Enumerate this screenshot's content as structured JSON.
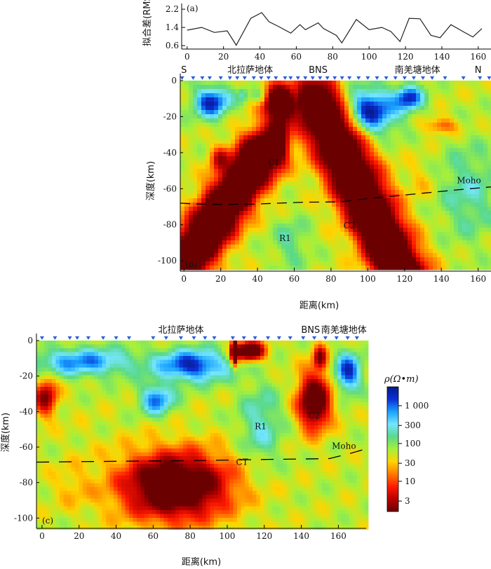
{
  "colors": {
    "scale": [
      "#6b0000",
      "#b80000",
      "#ff1a00",
      "#ff7a00",
      "#ffd400",
      "#a6f03a",
      "#5ad98a",
      "#73e6ff",
      "#1aa3ff",
      "#0a2fd6",
      "#061a8a"
    ],
    "station": "#2a5fd8",
    "moho": "#000000"
  },
  "chart_data": [
    {
      "id": "a",
      "panel_label": "(a)",
      "type": "line",
      "ylabel": "拟合差(RMS)",
      "yticks": [
        "2.2",
        "1.4",
        "0.6"
      ],
      "ylim": [
        0.45,
        2.45
      ],
      "xlim": [
        -3,
        167
      ],
      "xticks": [
        "0",
        "20",
        "40",
        "60",
        "80",
        "100",
        "120",
        "140",
        "160"
      ],
      "series": [
        {
          "x": [
            0,
            8,
            15,
            22,
            27,
            35,
            41,
            45,
            50,
            57,
            62,
            65,
            72,
            75,
            82,
            85,
            93,
            100,
            107,
            112,
            117,
            122,
            128,
            134,
            139,
            145,
            152,
            157,
            162
          ],
          "y": [
            1.28,
            1.4,
            1.18,
            1.25,
            0.62,
            1.8,
            2.05,
            1.65,
            1.45,
            1.15,
            1.52,
            1.3,
            1.6,
            1.35,
            1.05,
            0.72,
            1.75,
            1.3,
            1.4,
            1.22,
            0.78,
            1.8,
            1.78,
            1.05,
            0.95,
            1.52,
            1.2,
            0.98,
            1.35
          ]
        }
      ]
    },
    {
      "id": "b",
      "panel_label": "(b)",
      "type": "heatmap",
      "xlabel": "距离(km)",
      "ylabel": "深度(km)",
      "xlim": [
        -2,
        167
      ],
      "ylim": [
        0,
        -105
      ],
      "xticks": [
        "0",
        "20",
        "40",
        "60",
        "80",
        "100",
        "120",
        "140",
        "160"
      ],
      "yticks": [
        "0",
        "-20",
        "-40",
        "-60",
        "-80",
        "-100"
      ],
      "top_labels": [
        {
          "text": "S",
          "x": 0
        },
        {
          "text": "北拉萨地体",
          "x": 36
        },
        {
          "text": "BNS",
          "x": 73
        },
        {
          "text": "南羌塘地体",
          "x": 127
        },
        {
          "text": "N",
          "x": 160
        }
      ],
      "annotations": [
        {
          "text": "C1",
          "x": 49,
          "y": -47
        },
        {
          "text": "C2",
          "x": 90,
          "y": -82
        },
        {
          "text": "R1",
          "x": 55,
          "y": -89
        },
        {
          "text": "Moho",
          "x": 155,
          "y": -57
        }
      ],
      "stations": [
        -1,
        5,
        10,
        14,
        20,
        25,
        29,
        33,
        38,
        42,
        46,
        50,
        55,
        58,
        62,
        66,
        70,
        74,
        78,
        82,
        86,
        90,
        95,
        100,
        105,
        110,
        115,
        120,
        125,
        130,
        135,
        142,
        152,
        161,
        166
      ],
      "moho": [
        [
          -2,
          -68
        ],
        [
          6,
          -68.5
        ],
        [
          20,
          -68.8
        ],
        [
          40,
          -68.5
        ],
        [
          65,
          -67.5
        ],
        [
          85,
          -67.3
        ],
        [
          100,
          -65.5
        ],
        [
          115,
          -64
        ],
        [
          130,
          -62.5
        ],
        [
          150,
          -60.5
        ],
        [
          167,
          -59
        ]
      ],
      "bodies": [
        {
          "type": "blob",
          "x": 15,
          "y": -12,
          "rx": 11,
          "ry": 10,
          "v": 3.3
        },
        {
          "type": "blob",
          "x": 32,
          "y": -8,
          "rx": 3,
          "ry": 5,
          "v": 2.3
        },
        {
          "type": "blob",
          "x": 43,
          "y": -9,
          "rx": 7,
          "ry": 5,
          "v": 2.6
        },
        {
          "type": "blob",
          "x": 60,
          "y": -8,
          "rx": 5,
          "ry": 6,
          "v": 2.7
        },
        {
          "type": "blob",
          "x": 69,
          "y": -8,
          "rx": 6,
          "ry": 6,
          "v": 2.6
        },
        {
          "type": "blob",
          "x": 100,
          "y": -17,
          "rx": 17,
          "ry": 14,
          "v": 3.5
        },
        {
          "type": "blob",
          "x": 122,
          "y": -10,
          "rx": 9,
          "ry": 8,
          "v": 3.3
        },
        {
          "type": "blob",
          "x": 30,
          "y": -33,
          "rx": 10,
          "ry": 12,
          "v": 1.8
        },
        {
          "type": "blob",
          "x": 155,
          "y": -62,
          "rx": 18,
          "ry": 30,
          "v": 2.3
        },
        {
          "type": "blob",
          "x": 58,
          "y": -90,
          "rx": 11,
          "ry": 16,
          "v": 2.2
        },
        {
          "type": "blob",
          "x": 140,
          "y": -25,
          "rx": 10,
          "ry": 5,
          "v": 1.0
        },
        {
          "type": "blob",
          "x": 52,
          "y": -12,
          "rx": 10,
          "ry": 12,
          "v": -0.8
        },
        {
          "type": "blob",
          "x": 51,
          "y": -30,
          "rx": 6,
          "ry": 16,
          "v": -0.4
        },
        {
          "type": "band",
          "x0": 42,
          "y0": -40,
          "x1": -5,
          "y1": -110,
          "w": 28,
          "v": -0.9
        },
        {
          "type": "band",
          "x0": 72,
          "y0": -12,
          "x1": 120,
          "y1": -110,
          "w": 30,
          "v": -0.9
        },
        {
          "type": "blob",
          "x": 20,
          "y": -44,
          "rx": 6,
          "ry": 8,
          "v": 0.5
        },
        {
          "type": "blob",
          "x": 128,
          "y": -55,
          "rx": 8,
          "ry": 12,
          "v": 1.5
        }
      ]
    },
    {
      "id": "c",
      "panel_label": "(c)",
      "type": "heatmap",
      "xlabel": "距离(km)",
      "ylabel": "深度(km)",
      "xlim": [
        -3,
        175
      ],
      "ylim": [
        0,
        -105
      ],
      "xticks": [
        "0",
        "20",
        "40",
        "60",
        "80",
        "100",
        "120",
        "140",
        "160"
      ],
      "yticks": [
        "0",
        "-20",
        "-40",
        "-60",
        "-80",
        "-100"
      ],
      "top_labels": [
        {
          "text": "北拉萨地体",
          "x": 75
        },
        {
          "text": "BNS",
          "x": 145
        },
        {
          "text": "南羌塘地体",
          "x": 163
        }
      ],
      "annotations": [
        {
          "text": "R1",
          "x": 118,
          "y": -50
        },
        {
          "text": "C2",
          "x": 147,
          "y": -44
        },
        {
          "text": "CT",
          "x": 108,
          "y": -70
        },
        {
          "text": "Moho",
          "x": 163,
          "y": -61
        }
      ],
      "stations": [
        0,
        7,
        15,
        19,
        25,
        33,
        40,
        47,
        60,
        67,
        75,
        82,
        88,
        93,
        103,
        109,
        115,
        122,
        128,
        134,
        141,
        147,
        153,
        159,
        165,
        170
      ],
      "moho": [
        [
          -3,
          -68.5
        ],
        [
          20,
          -68.2
        ],
        [
          40,
          -68
        ],
        [
          60,
          -67.8
        ],
        [
          80,
          -67.6
        ],
        [
          100,
          -67.3
        ],
        [
          120,
          -67
        ],
        [
          140,
          -66.7
        ],
        [
          155,
          -66.5
        ],
        [
          165,
          -64
        ],
        [
          175,
          -61
        ]
      ],
      "bodies": [
        {
          "type": "blob",
          "x": 22,
          "y": -12,
          "rx": 32,
          "ry": 9,
          "v": 2.9
        },
        {
          "type": "blob",
          "x": 81,
          "y": -14,
          "rx": 22,
          "ry": 10,
          "v": 3.3
        },
        {
          "type": "blob",
          "x": 62,
          "y": -33,
          "rx": 10,
          "ry": 10,
          "v": 3.0
        },
        {
          "type": "blob",
          "x": 118,
          "y": -48,
          "rx": 13,
          "ry": 26,
          "v": 2.4
        },
        {
          "type": "blob",
          "x": 165,
          "y": -18,
          "rx": 8,
          "ry": 12,
          "v": 3.3
        },
        {
          "type": "blob",
          "x": 22,
          "y": -52,
          "rx": 13,
          "ry": 14,
          "v": 1.7
        },
        {
          "type": "blob",
          "x": 2,
          "y": -32,
          "rx": 7,
          "ry": 12,
          "v": 0.3
        },
        {
          "type": "blob",
          "x": 72,
          "y": -82,
          "rx": 34,
          "ry": 22,
          "v": -0.5
        },
        {
          "type": "blob",
          "x": 147,
          "y": -34,
          "rx": 10,
          "ry": 18,
          "v": -0.4
        },
        {
          "type": "blob",
          "x": 112,
          "y": -6,
          "rx": 9,
          "ry": 6,
          "v": -0.6
        },
        {
          "type": "blob",
          "x": 104,
          "y": -6,
          "rx": 2,
          "ry": 8,
          "v": -1.0
        },
        {
          "type": "blob",
          "x": 150,
          "y": -10,
          "rx": 4,
          "ry": 8,
          "v": 0.2
        },
        {
          "type": "blob",
          "x": 18,
          "y": -82,
          "rx": 14,
          "ry": 14,
          "v": 1.4
        }
      ]
    }
  ],
  "colorbar": {
    "title": "ρ(Ω•m)",
    "ticks": [
      "1 000",
      "300",
      "100",
      "30",
      "10",
      "3"
    ]
  }
}
